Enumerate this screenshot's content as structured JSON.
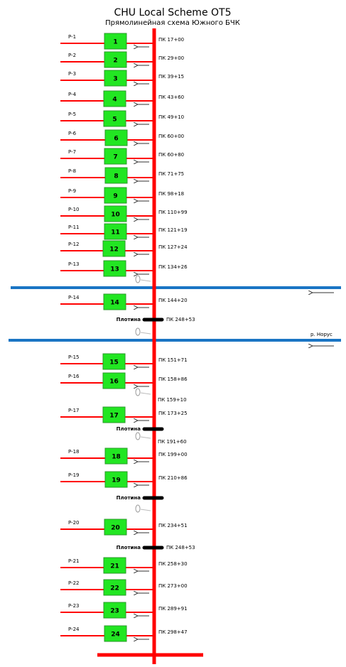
{
  "header": {
    "title": "CHU Local Scheme OT5",
    "subtitle": "Прямолинейная схема Южного БЧК"
  },
  "branches": [
    {
      "label": "P-1",
      "number": 1,
      "pk": "ПК 17+00"
    },
    {
      "label": "P-2",
      "number": 2,
      "pk": "ПК 29+00"
    },
    {
      "label": "P-3",
      "number": 3,
      "pk": "ПК 39+15"
    },
    {
      "label": "P-4",
      "number": 4,
      "pk": "ПК 43+60"
    },
    {
      "label": "P-5",
      "number": 5,
      "pk": "ПК 49+10"
    },
    {
      "label": "P-6",
      "number": 6,
      "pk": "ПК 60+00"
    },
    {
      "label": "P-7",
      "number": 7,
      "pk": "ПК 60+80"
    },
    {
      "label": "P-8",
      "number": 8,
      "pk": "ПК 71+75"
    },
    {
      "label": "P-9",
      "number": 9,
      "pk": "ПК 98+18"
    },
    {
      "label": "P-10",
      "number": 10,
      "pk": "ПК 110+99"
    },
    {
      "label": "P-11",
      "number": 11,
      "pk": "ПК 121+19"
    },
    {
      "label": "P-12",
      "number": 12,
      "pk": "ПК 127+24"
    },
    {
      "label": "P-13",
      "number": 13,
      "pk": "ПК 134+26"
    },
    {
      "label": "P-14",
      "number": 14,
      "pk": "ПК 144+20"
    },
    {
      "label": "P-15",
      "number": 15,
      "pk": "ПК 151+71"
    },
    {
      "label": "P-16",
      "number": 16,
      "pk": "ПК 158+86"
    },
    {
      "label": "P-17",
      "number": 17,
      "pk": "ПК 173+25"
    },
    {
      "label": "P-18",
      "number": 18,
      "pk": "ПК 199+00"
    },
    {
      "label": "P-19",
      "number": 19,
      "pk": "ПК 210+86"
    },
    {
      "label": "P-20",
      "number": 20,
      "pk": "ПК 234+51"
    },
    {
      "label": "P-21",
      "number": 21,
      "pk": "ПК 258+30"
    },
    {
      "label": "P-22",
      "number": 22,
      "pk": "ПК 273+00"
    },
    {
      "label": "P-23",
      "number": 23,
      "pk": "ПК 289+91"
    },
    {
      "label": "P-24",
      "number": 24,
      "pk": "ПК 298+47"
    }
  ],
  "dams": [
    {
      "label": "Плотина",
      "pk": "ПК 248+53"
    },
    {
      "label": "Плотина"
    },
    {
      "label": "Плотина"
    },
    {
      "label": "Плотина",
      "pk": "ПК 248+53"
    }
  ],
  "pk_marks": [
    "ПК 159+10",
    "ПК 191+60"
  ],
  "river_label": "р. Норус"
}
